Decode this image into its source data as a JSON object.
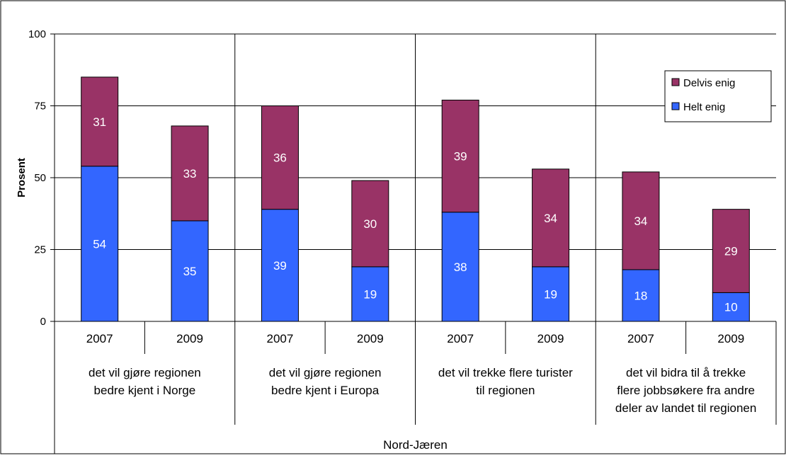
{
  "colors": {
    "helt": "#3366ff",
    "delvis": "#993366",
    "axis": "#000000",
    "background": "#ffffff"
  },
  "chart_data": {
    "type": "bar",
    "stacked": true,
    "title": "",
    "xlabel": "",
    "ylabel": "Prosent",
    "ylim": [
      0,
      100
    ],
    "yticks": [
      0,
      25,
      50,
      75,
      100
    ],
    "grid": true,
    "legend_position": "top-right",
    "outer_group": "Nord-Jæren",
    "groups": [
      {
        "label_lines": [
          "det vil gjøre regionen",
          "bedre kjent i Norge"
        ],
        "years": [
          "2007",
          "2009"
        ]
      },
      {
        "label_lines": [
          "det vil gjøre regionen",
          "bedre kjent i Europa"
        ],
        "years": [
          "2007",
          "2009"
        ]
      },
      {
        "label_lines": [
          "det vil trekke flere turister",
          "til regionen"
        ],
        "years": [
          "2007",
          "2009"
        ]
      },
      {
        "label_lines": [
          "det vil bidra til å trekke",
          "flere jobbsøkere fra andre",
          "deler av landet til regionen"
        ],
        "years": [
          "2007",
          "2009"
        ]
      }
    ],
    "series": [
      {
        "name": "Helt enig",
        "color": "#3366ff",
        "values": [
          54,
          35,
          39,
          19,
          38,
          19,
          18,
          10
        ]
      },
      {
        "name": "Delvis enig",
        "color": "#993366",
        "values": [
          31,
          33,
          36,
          30,
          39,
          34,
          34,
          29
        ]
      }
    ],
    "legend_order": [
      "Delvis enig",
      "Helt enig"
    ]
  }
}
